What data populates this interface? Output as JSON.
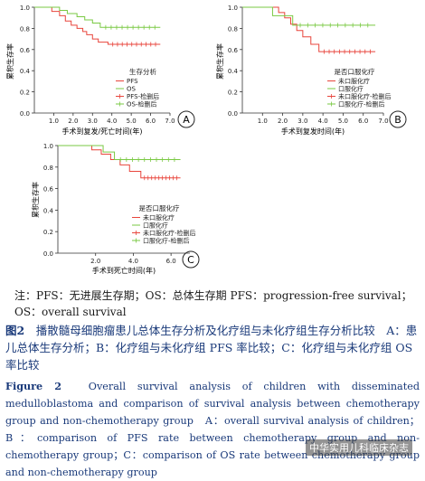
{
  "note": "注：PFS：无进展生存期；OS：总体生存期    PFS：progression-free survival；OS：overall survival",
  "caption_cn": {
    "label": "图2",
    "text": "播散髓母细胞瘤患儿总体生存分析及化疗组与未化疗组生存分析比较　A：患儿总体生存分析；B：化疗组与未化疗组 PFS 率比较；C：化疗组与未化疗组 OS 率比较"
  },
  "caption_en": {
    "label": "Figure 2",
    "text": "Overall survival analysis of children with disseminated medulloblastoma and comparison of survival analysis between chemotherapy group and non-chemotherapy group　A：overall survival analysis of children；B：comparison of PFS rate between chemotherapy group and non-chemotherapy group；C：comparison of OS rate between chemotherapy group and non-chemotherapy group"
  },
  "watermark": "中华实用儿科临床杂志",
  "colors": {
    "red": "#e8453c",
    "green": "#7ac943",
    "caption": "#1a3a7a"
  },
  "chart_data": [
    {
      "type": "line",
      "panel_label": "A",
      "ylabel": "累积生存率",
      "xlabel": "手术到复发/死亡时间(年)",
      "xlim": [
        0,
        7.0
      ],
      "ylim": [
        0,
        1.0
      ],
      "x_ticks": [
        "1.0",
        "2.0",
        "3.0",
        "4.0",
        "5.0",
        "6.0",
        "7.0"
      ],
      "y_ticks": [
        "0.0",
        "0.2",
        "0.4",
        "0.6",
        "0.8",
        "1.0"
      ],
      "legend_title": "生存分析",
      "legend_position": "bottom-right",
      "legend": [
        "PFS",
        "OS",
        "PFS-检删后",
        "OS-检删后"
      ],
      "series": [
        {
          "name": "PFS",
          "color": "red",
          "x": [
            0,
            0.9,
            1.3,
            1.6,
            1.9,
            2.2,
            2.5,
            2.7,
            3.0,
            3.3,
            3.8,
            6.5
          ],
          "y": [
            1.0,
            0.96,
            0.92,
            0.87,
            0.83,
            0.8,
            0.77,
            0.74,
            0.7,
            0.67,
            0.65,
            0.65
          ]
        },
        {
          "name": "OS",
          "color": "green",
          "x": [
            0,
            1.3,
            1.7,
            2.2,
            2.6,
            3.0,
            3.4,
            6.5
          ],
          "y": [
            1.0,
            0.97,
            0.94,
            0.91,
            0.88,
            0.85,
            0.81,
            0.81
          ]
        }
      ]
    },
    {
      "type": "line",
      "panel_label": "B",
      "ylabel": "累积生存率",
      "xlabel": "手术到复发时间(年)",
      "xlim": [
        0,
        7.0
      ],
      "ylim": [
        0,
        1.0
      ],
      "x_ticks": [
        "1.0",
        "2.0",
        "3.0",
        "4.0",
        "5.0",
        "6.0",
        "7.0"
      ],
      "y_ticks": [
        "0.0",
        "0.2",
        "0.4",
        "0.6",
        "0.8",
        "1.0"
      ],
      "legend_title": "是否口服化疗",
      "legend_position": "bottom-right",
      "legend": [
        "未口服化疗",
        "口服化疗",
        "未口服化疗-检删后",
        "口服化疗-检删后"
      ],
      "series": [
        {
          "name": "未口服化疗",
          "color": "red",
          "x": [
            0,
            1.8,
            2.1,
            2.4,
            2.7,
            3.0,
            3.4,
            3.8,
            6.6
          ],
          "y": [
            1.0,
            0.95,
            0.9,
            0.84,
            0.78,
            0.72,
            0.65,
            0.58,
            0.58
          ]
        },
        {
          "name": "口服化疗",
          "color": "green",
          "x": [
            0,
            1.5,
            2.5,
            6.6
          ],
          "y": [
            1.0,
            0.92,
            0.83,
            0.83
          ]
        }
      ]
    },
    {
      "type": "line",
      "panel_label": "C",
      "ylabel": "累积生存率",
      "xlabel": "手术到死亡时间(年)",
      "xlim": [
        0,
        7.0
      ],
      "ylim": [
        0,
        1.0
      ],
      "x_ticks": [
        "2.0",
        "4.0",
        "6.0"
      ],
      "y_ticks": [
        "0.0",
        "0.2",
        "0.4",
        "0.6",
        "0.8",
        "1.0"
      ],
      "legend_title": "是否口服化疗",
      "legend_position": "bottom-right",
      "legend": [
        "未口服化疗",
        "口服化疗",
        "未口服化疗-检删后",
        "口服化疗-检删后"
      ],
      "series": [
        {
          "name": "未口服化疗",
          "color": "red",
          "x": [
            0,
            1.8,
            2.3,
            2.8,
            3.3,
            3.8,
            4.4,
            6.5
          ],
          "y": [
            1.0,
            0.96,
            0.92,
            0.87,
            0.82,
            0.76,
            0.7,
            0.7
          ]
        },
        {
          "name": "口服化疗",
          "color": "green",
          "x": [
            0,
            2.4,
            3.0,
            6.5
          ],
          "y": [
            1.0,
            0.94,
            0.87,
            0.87
          ]
        }
      ]
    }
  ]
}
